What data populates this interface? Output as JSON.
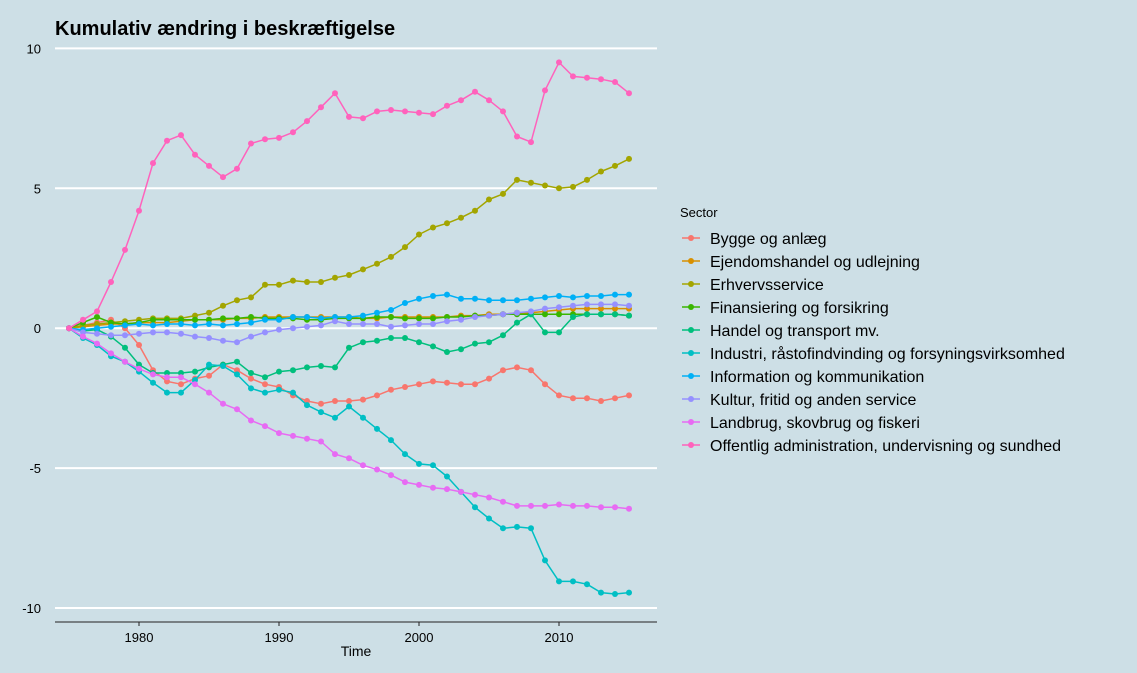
{
  "chart_data": {
    "type": "line",
    "title": "Kumulativ ændring i beskræftigelse",
    "xlabel": "Time",
    "ylabel": "",
    "xlim": [
      1974,
      2017
    ],
    "ylim": [
      -10.5,
      10.3
    ],
    "xticks": [
      1980,
      1990,
      2000,
      2010
    ],
    "yticks": [
      10,
      5,
      0,
      -5,
      -10
    ],
    "grid": true,
    "legend_title": "Sector",
    "legend_position": "right",
    "x": [
      1975,
      1976,
      1977,
      1978,
      1979,
      1980,
      1981,
      1982,
      1983,
      1984,
      1985,
      1986,
      1987,
      1988,
      1989,
      1990,
      1991,
      1992,
      1993,
      1994,
      1995,
      1996,
      1997,
      1998,
      1999,
      2000,
      2001,
      2002,
      2003,
      2004,
      2005,
      2006,
      2007,
      2008,
      2009,
      2010,
      2011,
      2012,
      2013,
      2014,
      2015
    ],
    "series": [
      {
        "name": "Bygge og anlæg",
        "color": "#f8766d",
        "values": [
          0,
          0.1,
          0.2,
          0.3,
          0,
          -0.6,
          -1.5,
          -1.9,
          -2.0,
          -1.8,
          -1.7,
          -1.3,
          -1.5,
          -1.8,
          -2.0,
          -2.1,
          -2.4,
          -2.6,
          -2.7,
          -2.6,
          -2.6,
          -2.55,
          -2.4,
          -2.2,
          -2.1,
          -2.0,
          -1.9,
          -1.95,
          -2.0,
          -2.0,
          -1.8,
          -1.5,
          -1.4,
          -1.5,
          -2.0,
          -2.4,
          -2.5,
          -2.5,
          -2.6,
          -2.5,
          -2.4
        ]
      },
      {
        "name": "Ejendomshandel og udlejning",
        "color": "#d89000",
        "values": [
          0,
          0.05,
          0.1,
          0.15,
          0.15,
          0.2,
          0.2,
          0.2,
          0.25,
          0.3,
          0.3,
          0.3,
          0.35,
          0.35,
          0.4,
          0.4,
          0.4,
          0.4,
          0.4,
          0.4,
          0.4,
          0.35,
          0.35,
          0.4,
          0.4,
          0.4,
          0.4,
          0.4,
          0.45,
          0.45,
          0.5,
          0.5,
          0.55,
          0.55,
          0.6,
          0.65,
          0.7,
          0.7,
          0.7,
          0.7,
          0.7
        ]
      },
      {
        "name": "Erhvervsservice",
        "color": "#a3a500",
        "values": [
          0,
          0.1,
          0.15,
          0.2,
          0.25,
          0.3,
          0.35,
          0.35,
          0.35,
          0.45,
          0.55,
          0.8,
          1.0,
          1.1,
          1.55,
          1.55,
          1.7,
          1.65,
          1.65,
          1.8,
          1.9,
          2.1,
          2.3,
          2.55,
          2.9,
          3.35,
          3.6,
          3.75,
          3.95,
          4.2,
          4.6,
          4.8,
          5.3,
          5.2,
          5.1,
          5.0,
          5.05,
          5.3,
          5.6,
          5.8,
          6.05
        ]
      },
      {
        "name": "Finansiering og forsikring",
        "color": "#39b600",
        "values": [
          0,
          0.2,
          0.4,
          0.2,
          0.15,
          0.2,
          0.3,
          0.3,
          0.3,
          0.3,
          0.3,
          0.35,
          0.35,
          0.4,
          0.35,
          0.35,
          0.35,
          0.3,
          0.3,
          0.35,
          0.35,
          0.35,
          0.4,
          0.4,
          0.35,
          0.35,
          0.35,
          0.4,
          0.4,
          0.45,
          0.45,
          0.5,
          0.5,
          0.5,
          0.5,
          0.5,
          0.5,
          0.5,
          0.5,
          0.5,
          0.45
        ]
      },
      {
        "name": "Handel og transport mv.",
        "color": "#00bf7d",
        "values": [
          0,
          -0.1,
          -0.05,
          -0.3,
          -0.7,
          -1.3,
          -1.6,
          -1.6,
          -1.6,
          -1.55,
          -1.4,
          -1.3,
          -1.2,
          -1.6,
          -1.75,
          -1.55,
          -1.5,
          -1.4,
          -1.35,
          -1.4,
          -0.7,
          -0.5,
          -0.45,
          -0.35,
          -0.35,
          -0.5,
          -0.65,
          -0.85,
          -0.75,
          -0.55,
          -0.5,
          -0.25,
          0.2,
          0.5,
          -0.15,
          -0.15,
          0.4,
          0.5,
          0.5,
          0.5,
          0.45
        ]
      },
      {
        "name": "Industri, råstofindvinding og forsyningsvirksomhed",
        "color": "#00bfc4",
        "values": [
          0,
          -0.35,
          -0.6,
          -1.0,
          -1.2,
          -1.55,
          -1.95,
          -2.3,
          -2.3,
          -1.85,
          -1.3,
          -1.35,
          -1.65,
          -2.15,
          -2.3,
          -2.2,
          -2.3,
          -2.75,
          -3.0,
          -3.2,
          -2.8,
          -3.2,
          -3.6,
          -4.0,
          -4.5,
          -4.85,
          -4.9,
          -5.3,
          -5.85,
          -6.4,
          -6.8,
          -7.15,
          -7.1,
          -7.15,
          -8.3,
          -9.05,
          -9.05,
          -9.15,
          -9.45,
          -9.5,
          -9.45
        ]
      },
      {
        "name": "Information og kommunikation",
        "color": "#00b0f6",
        "values": [
          0,
          -0.05,
          0,
          0.05,
          0.1,
          0.15,
          0.1,
          0.15,
          0.15,
          0.1,
          0.15,
          0.1,
          0.15,
          0.2,
          0.3,
          0.3,
          0.4,
          0.4,
          0.35,
          0.4,
          0.4,
          0.45,
          0.55,
          0.65,
          0.9,
          1.05,
          1.15,
          1.2,
          1.05,
          1.05,
          1.0,
          1.0,
          1.0,
          1.05,
          1.1,
          1.15,
          1.1,
          1.15,
          1.15,
          1.2,
          1.2
        ]
      },
      {
        "name": "Kultur, fritid og anden service",
        "color": "#9590ff",
        "values": [
          0,
          -0.15,
          -0.2,
          -0.25,
          -0.25,
          -0.2,
          -0.15,
          -0.15,
          -0.2,
          -0.3,
          -0.35,
          -0.45,
          -0.5,
          -0.3,
          -0.15,
          -0.05,
          0,
          0.05,
          0.1,
          0.25,
          0.15,
          0.15,
          0.15,
          0.05,
          0.1,
          0.15,
          0.15,
          0.25,
          0.3,
          0.4,
          0.45,
          0.5,
          0.55,
          0.6,
          0.7,
          0.75,
          0.8,
          0.85,
          0.85,
          0.85,
          0.8
        ]
      },
      {
        "name": "Landbrug, skovbrug og fiskeri",
        "color": "#e76bf3",
        "values": [
          0,
          -0.3,
          -0.55,
          -0.9,
          -1.2,
          -1.45,
          -1.65,
          -1.75,
          -1.75,
          -2.0,
          -2.3,
          -2.7,
          -2.9,
          -3.3,
          -3.5,
          -3.75,
          -3.85,
          -3.95,
          -4.05,
          -4.5,
          -4.65,
          -4.9,
          -5.05,
          -5.25,
          -5.5,
          -5.6,
          -5.7,
          -5.75,
          -5.85,
          -5.95,
          -6.05,
          -6.2,
          -6.35,
          -6.35,
          -6.35,
          -6.3,
          -6.35,
          -6.35,
          -6.4,
          -6.4,
          -6.45
        ]
      },
      {
        "name": "Offentlig administration, undervisning og sundhed",
        "color": "#ff62bc",
        "values": [
          0,
          0.3,
          0.6,
          1.65,
          2.8,
          4.2,
          5.9,
          6.7,
          6.9,
          6.2,
          5.8,
          5.4,
          5.7,
          6.6,
          6.75,
          6.8,
          7.0,
          7.4,
          7.9,
          8.4,
          7.55,
          7.5,
          7.75,
          7.8,
          7.75,
          7.7,
          7.65,
          7.95,
          8.15,
          8.45,
          8.15,
          7.75,
          6.85,
          6.65,
          8.5,
          9.5,
          9.0,
          8.95,
          8.9,
          8.8,
          8.4
        ]
      }
    ]
  }
}
